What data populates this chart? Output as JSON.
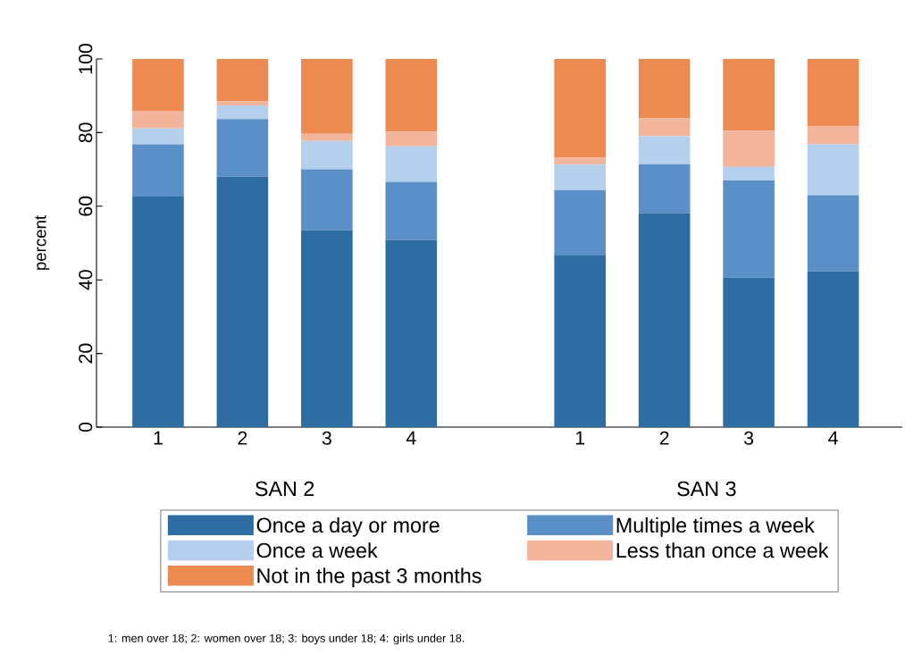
{
  "chart_data": {
    "type": "bar",
    "stacked": true,
    "ylabel": "percent",
    "categories": [
      "1",
      "2",
      "3",
      "4",
      "1",
      "2",
      "3",
      "4"
    ],
    "series": [
      {
        "name": "Once a day or more",
        "color": "#2e6da4",
        "values": [
          62.6,
          68.0,
          53.5,
          50.8,
          46.8,
          58.1,
          40.6,
          42.3
        ]
      },
      {
        "name": "Multiple times a week",
        "color": "#5b8fc7",
        "values": [
          14.2,
          15.7,
          16.5,
          15.8,
          17.6,
          13.3,
          26.4,
          20.7
        ]
      },
      {
        "name": "Once a week",
        "color": "#b4d0ec",
        "values": [
          4.3,
          3.7,
          7.7,
          9.7,
          6.9,
          7.6,
          3.7,
          13.8
        ]
      },
      {
        "name": "Less than once a week",
        "color": "#f2b49b",
        "values": [
          4.8,
          1.1,
          2.0,
          4.0,
          1.9,
          4.9,
          9.8,
          4.9
        ]
      },
      {
        "name": "Not in the past 3 months",
        "color": "#ec8a52",
        "values": [
          14.1,
          11.5,
          20.3,
          19.7,
          26.8,
          16.1,
          19.5,
          18.3
        ]
      }
    ],
    "ylim": [
      0,
      100
    ],
    "yticks": [
      0,
      20,
      40,
      60,
      80,
      100
    ],
    "grid": false,
    "legend": "bottom",
    "annotations": [
      "SAN 2",
      "SAN 3",
      "1: men over 18; 2: women over 18; 3: boys under 18; 4: girls under 18."
    ]
  }
}
